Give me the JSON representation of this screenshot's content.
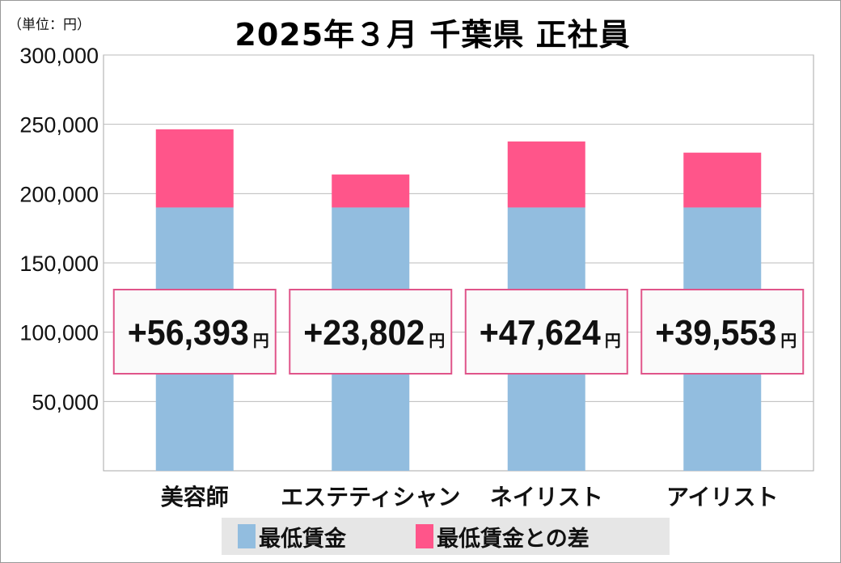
{
  "chart_data": {
    "type": "bar",
    "stacked": true,
    "title": "2025年３月 千葉県 正社員",
    "unit_label": "（単位：円）",
    "categories": [
      "美容師",
      "エステティシャン",
      "ネイリスト",
      "アイリスト"
    ],
    "series": [
      {
        "name": "最低賃金",
        "values": [
          190000,
          190000,
          190000,
          190000
        ],
        "color": "#92bddf"
      },
      {
        "name": "最低賃金との差",
        "values": [
          56393,
          23802,
          47624,
          39553
        ],
        "color": "#ff558a"
      }
    ],
    "data_labels": [
      "+56,393",
      "+23,802",
      "+47,624",
      "+39,553"
    ],
    "data_label_unit": "円",
    "ylim": [
      0,
      300000
    ],
    "yticks": [
      50000,
      100000,
      150000,
      200000,
      250000,
      300000
    ],
    "ytick_labels": [
      "50,000",
      "100,000",
      "150,000",
      "200,000",
      "250,000",
      "300,000"
    ],
    "grid": true,
    "legend_position": "bottom",
    "label_box_border": "#e0558a"
  }
}
